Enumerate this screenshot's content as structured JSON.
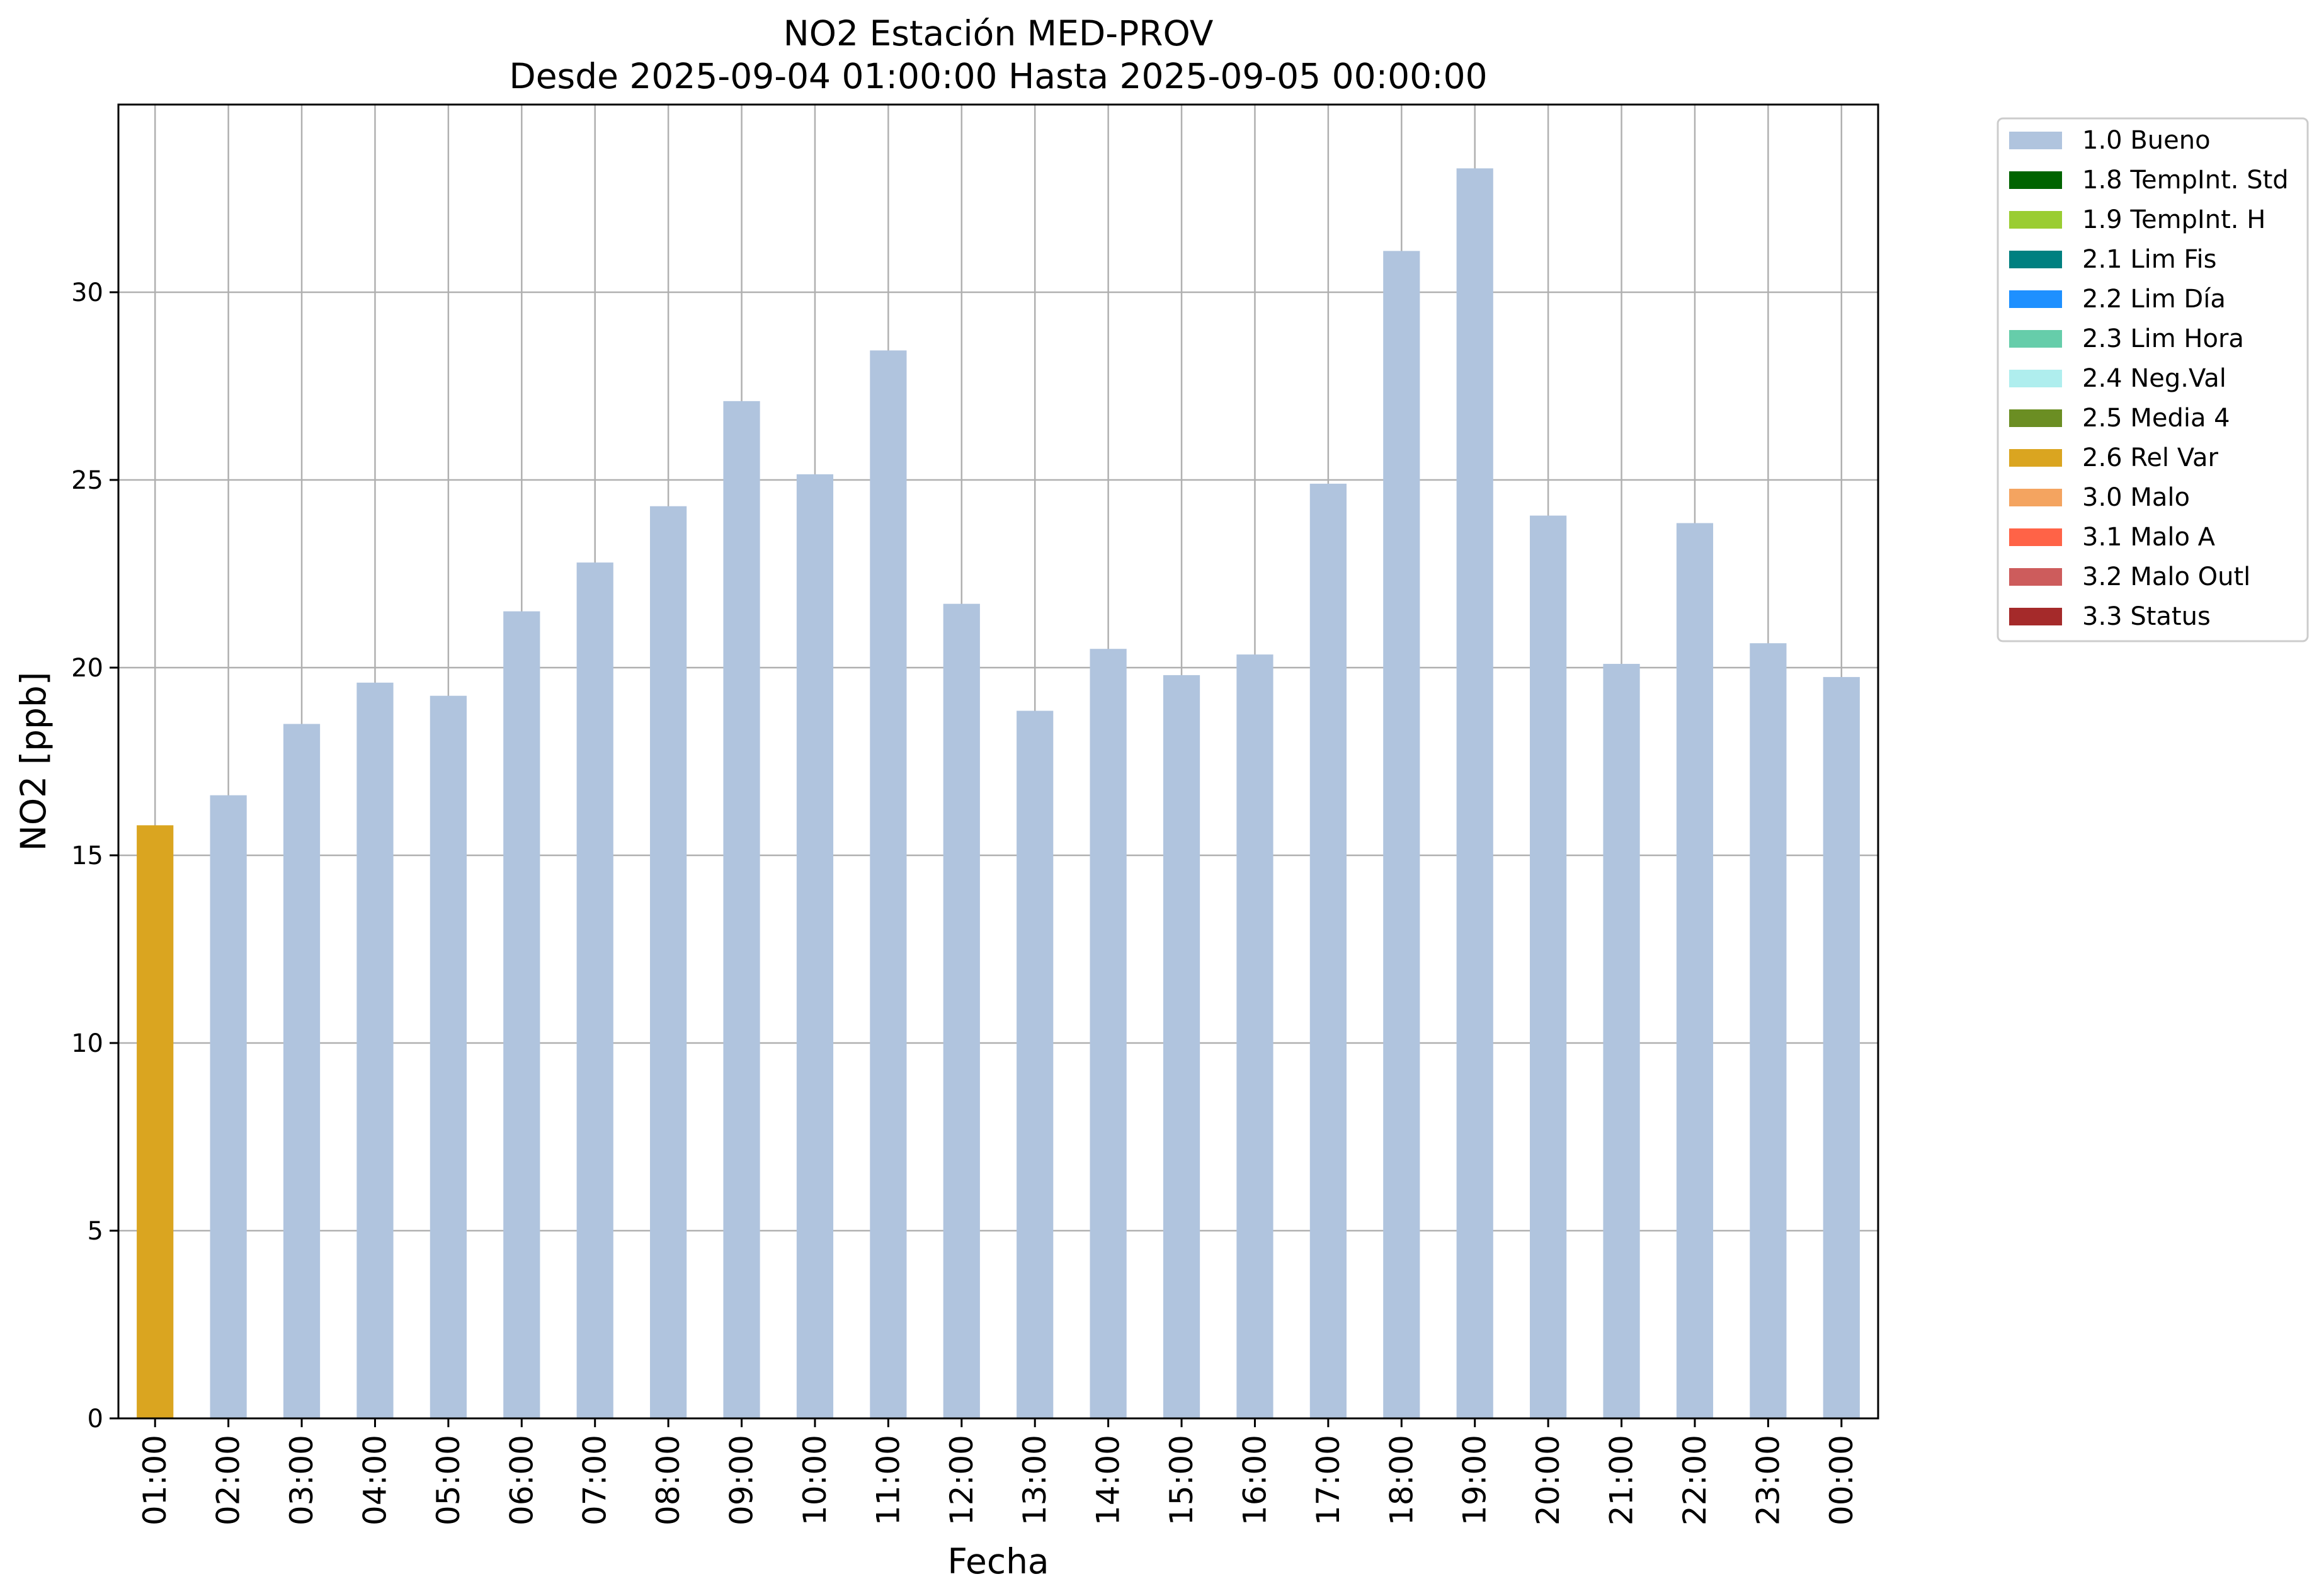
{
  "chart_data": {
    "type": "bar",
    "title": "NO2 Estación MED-PROV",
    "subtitle": "Desde 2025-09-04 01:00:00 Hasta 2025-09-05 00:00:00",
    "xlabel": "Fecha",
    "ylabel": "NO2 [ppb]",
    "ylim": [
      0,
      35
    ],
    "yticks": [
      "0",
      "5",
      "10",
      "15",
      "20",
      "25",
      "30"
    ],
    "grid": true,
    "legend_position": "outside-top-right",
    "categories": [
      "01:00",
      "02:00",
      "03:00",
      "04:00",
      "05:00",
      "06:00",
      "07:00",
      "08:00",
      "09:00",
      "10:00",
      "11:00",
      "12:00",
      "13:00",
      "14:00",
      "15:00",
      "16:00",
      "17:00",
      "18:00",
      "19:00",
      "20:00",
      "21:00",
      "22:00",
      "23:00",
      "00:00"
    ],
    "values": [
      15.8,
      16.6,
      18.5,
      19.6,
      19.25,
      21.5,
      22.8,
      24.3,
      27.1,
      25.15,
      28.45,
      21.7,
      18.85,
      20.5,
      19.8,
      20.35,
      24.9,
      31.1,
      33.3,
      24.05,
      20.1,
      23.85,
      20.65,
      19.75
    ],
    "bar_flag": [
      "2.6 Rel Var",
      "1.0 Bueno",
      "1.0 Bueno",
      "1.0 Bueno",
      "1.0 Bueno",
      "1.0 Bueno",
      "1.0 Bueno",
      "1.0 Bueno",
      "1.0 Bueno",
      "1.0 Bueno",
      "1.0 Bueno",
      "1.0 Bueno",
      "1.0 Bueno",
      "1.0 Bueno",
      "1.0 Bueno",
      "1.0 Bueno",
      "1.0 Bueno",
      "1.0 Bueno",
      "1.0 Bueno",
      "1.0 Bueno",
      "1.0 Bueno",
      "1.0 Bueno",
      "1.0 Bueno",
      "1.0 Bueno"
    ],
    "legend": [
      {
        "label": "1.0 Bueno",
        "color": "#b0c4de"
      },
      {
        "label": "1.8 TempInt. Std",
        "color": "#006400"
      },
      {
        "label": "1.9 TempInt. H",
        "color": "#9acd32"
      },
      {
        "label": "2.1 Lim Fis",
        "color": "#008080"
      },
      {
        "label": "2.2 Lim Día",
        "color": "#1e90ff"
      },
      {
        "label": "2.3 Lim Hora",
        "color": "#66cdaa"
      },
      {
        "label": "2.4 Neg.Val",
        "color": "#afeeee"
      },
      {
        "label": "2.5 Media 4",
        "color": "#6b8e23"
      },
      {
        "label": "2.6 Rel Var",
        "color": "#daa520"
      },
      {
        "label": "3.0 Malo",
        "color": "#f4a460"
      },
      {
        "label": "3.1 Malo A",
        "color": "#ff6347"
      },
      {
        "label": "3.2 Malo Outl",
        "color": "#cd5c5c"
      },
      {
        "label": "3.3 Status",
        "color": "#a52a2a"
      }
    ]
  }
}
